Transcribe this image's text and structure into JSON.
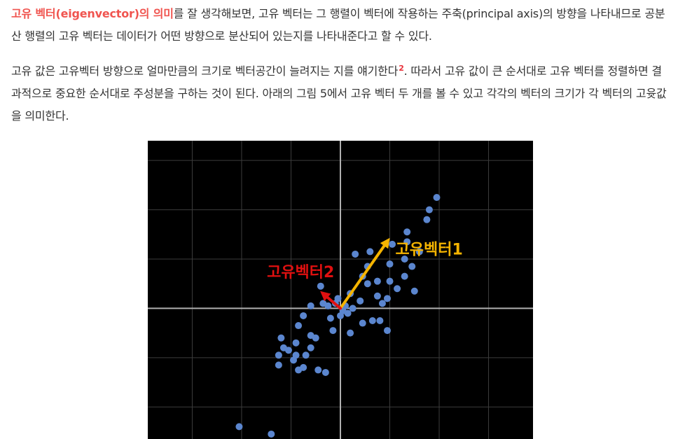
{
  "paragraph1": {
    "highlight": "고유 벡터(eigenvector)의 의미",
    "text": "를 잘 생각해보면, 고유 벡터는 그 행렬이 벡터에 작용하는 주축(principal axis)의 방향을 나타내므로 공분산 행렬의 고유 벡터는 데이터가 어떤 방향으로 분산되어 있는지를 나타내준다고 할 수 있다."
  },
  "paragraph2": {
    "text_before": "고유 값은 고유벡터 방향으로 얼마만큼의 크기로 벡터공간이 늘려지는 지를 얘기한다",
    "footnote": "2",
    "text_after": ". 따라서 고유 값이 큰 순서대로 고유 벡터를 정렬하면 결과적으로 중요한 순서대로 주성분을 구하는 것이 된다. 아래의 그림 5에서 고유 벡터 두 개를 볼 수 있고 각각의 벡터의 크기가 각 벡터의 고윳값을 의미한다."
  },
  "figure": {
    "background": "#000000",
    "grid_color": "#3c3c3c",
    "axis_color": "#b0b0b0",
    "point_color": "#5b86cf",
    "vectors": [
      {
        "label": "고유벡터1",
        "color": "#f5b400",
        "dx": 1.0,
        "dy": 1.43
      },
      {
        "label": "고유벡터2",
        "color": "#e01010",
        "dx": -0.41,
        "dy": 0.35
      }
    ]
  },
  "chart_data": {
    "type": "scatter",
    "title": "",
    "xlabel": "",
    "ylabel": "",
    "grid": true,
    "xlim": [
      -3.9,
      3.9
    ],
    "ylim": [
      -2.65,
      3.4
    ],
    "points": [
      [
        -2.05,
        -2.4
      ],
      [
        -1.4,
        -2.55
      ],
      [
        -1.25,
        -0.95
      ],
      [
        -1.25,
        -1.15
      ],
      [
        -1.15,
        -0.8
      ],
      [
        -1.2,
        -0.6
      ],
      [
        -1.05,
        -0.85
      ],
      [
        -0.95,
        -1.05
      ],
      [
        -0.9,
        -0.7
      ],
      [
        -0.85,
        -0.35
      ],
      [
        -0.75,
        -0.15
      ],
      [
        -0.9,
        -0.95
      ],
      [
        -0.85,
        -1.25
      ],
      [
        -0.75,
        -1.2
      ],
      [
        -0.6,
        -0.55
      ],
      [
        -0.5,
        -0.6
      ],
      [
        -0.45,
        -1.25
      ],
      [
        -0.3,
        -1.3
      ],
      [
        -0.2,
        -0.2
      ],
      [
        -0.15,
        -0.45
      ],
      [
        -0.1,
        0.1
      ],
      [
        -0.05,
        0.2
      ],
      [
        0.0,
        -0.15
      ],
      [
        0.05,
        -0.05
      ],
      [
        0.1,
        0.05
      ],
      [
        -0.35,
        0.1
      ],
      [
        -0.4,
        0.45
      ],
      [
        0.2,
        0.3
      ],
      [
        0.2,
        -0.5
      ],
      [
        0.4,
        0.15
      ],
      [
        0.45,
        0.65
      ],
      [
        0.55,
        0.85
      ],
      [
        0.6,
        1.15
      ],
      [
        0.3,
        1.1
      ],
      [
        0.55,
        0.5
      ],
      [
        0.75,
        0.55
      ],
      [
        0.75,
        0.25
      ],
      [
        0.85,
        0.1
      ],
      [
        0.95,
        0.2
      ],
      [
        0.8,
        -0.25
      ],
      [
        0.95,
        -0.45
      ],
      [
        1.0,
        0.55
      ],
      [
        1.0,
        0.9
      ],
      [
        1.05,
        1.3
      ],
      [
        1.3,
        1.0
      ],
      [
        1.35,
        1.35
      ],
      [
        1.3,
        0.65
      ],
      [
        1.45,
        0.85
      ],
      [
        1.35,
        1.55
      ],
      [
        1.5,
        0.35
      ],
      [
        1.6,
        1.15
      ],
      [
        1.8,
        2.0
      ],
      [
        1.95,
        2.25
      ],
      [
        1.75,
        1.8
      ],
      [
        0.25,
        0.0
      ],
      [
        0.65,
        -0.25
      ],
      [
        0.45,
        -0.3
      ],
      [
        -0.6,
        0.05
      ],
      [
        -0.7,
        -0.95
      ],
      [
        -0.6,
        -0.8
      ],
      [
        1.15,
        0.4
      ],
      [
        0.15,
        -0.1
      ],
      [
        -0.25,
        0.05
      ]
    ]
  }
}
